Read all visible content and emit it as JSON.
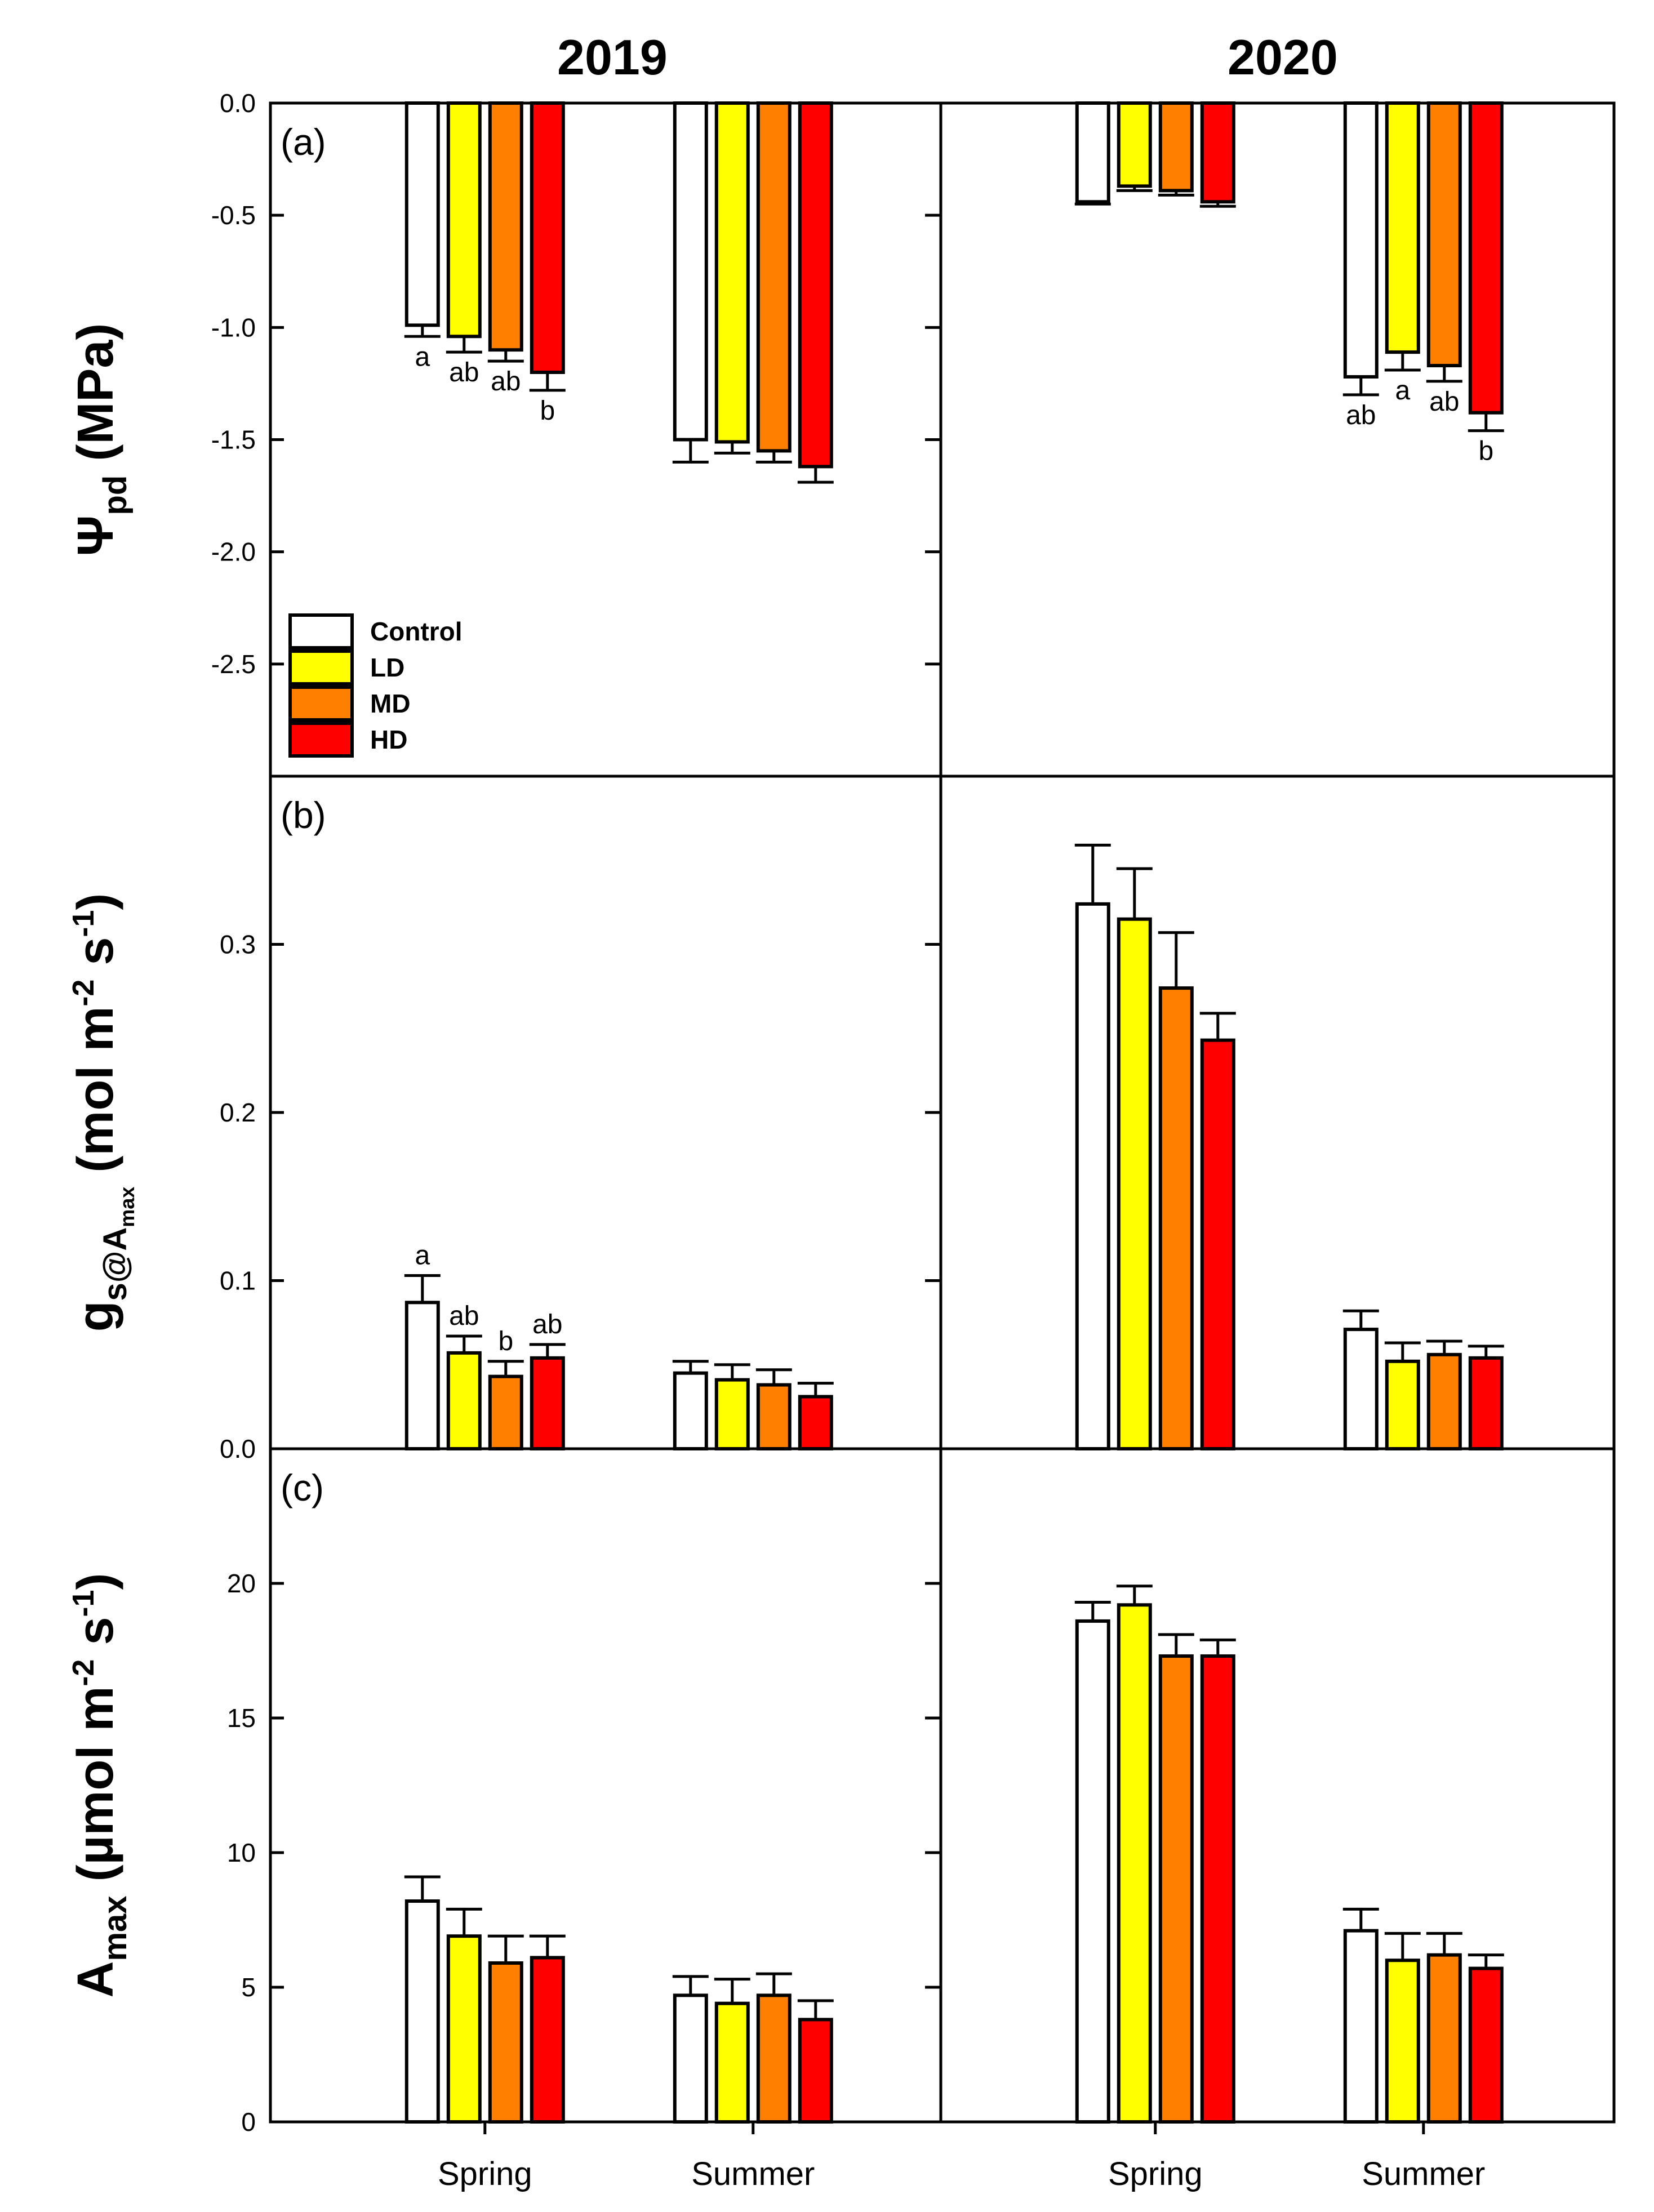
{
  "chart_data": {
    "type": "bar",
    "years": [
      "2019",
      "2020"
    ],
    "seasons": [
      "Spring",
      "Summer"
    ],
    "treatments": [
      "Control",
      "LD",
      "MD",
      "HD"
    ],
    "colors": {
      "Control": "#ffffff",
      "LD": "#ffff00",
      "MD": "#ff8000",
      "HD": "#ff0000"
    },
    "panels": [
      {
        "id": "a",
        "label": "(a)",
        "ylabel_main": "Ψ",
        "ylabel_sub": "pd",
        "ylabel_rest": " (MPa)",
        "ylim": [
          -3.0,
          0.0
        ],
        "yticks": [
          0.0,
          -0.5,
          -1.0,
          -1.5,
          -2.0,
          -2.5
        ],
        "ytick_labels": [
          "0.0",
          "-0.5",
          "-1.0",
          "-1.5",
          "-2.0",
          "-2.5"
        ],
        "groups": [
          {
            "year": "2019",
            "season": "Spring",
            "values": [
              -0.99,
              -1.04,
              -1.1,
              -1.2
            ],
            "errors": [
              0.05,
              0.07,
              0.05,
              0.08
            ],
            "letters": [
              "a",
              "ab",
              "ab",
              "b"
            ]
          },
          {
            "year": "2019",
            "season": "Summer",
            "values": [
              -1.5,
              -1.51,
              -1.55,
              -1.62
            ],
            "errors": [
              0.1,
              0.05,
              0.05,
              0.07
            ],
            "letters": [
              "",
              "",
              "",
              ""
            ]
          },
          {
            "year": "2020",
            "season": "Spring",
            "values": [
              -0.44,
              -0.37,
              -0.39,
              -0.44
            ],
            "errors": [
              0.01,
              0.02,
              0.02,
              0.02
            ],
            "letters": [
              "",
              "",
              "",
              ""
            ]
          },
          {
            "year": "2020",
            "season": "Summer",
            "values": [
              -1.22,
              -1.11,
              -1.17,
              -1.38
            ],
            "errors": [
              0.08,
              0.08,
              0.07,
              0.08
            ],
            "letters": [
              "ab",
              "a",
              "ab",
              "b"
            ]
          }
        ]
      },
      {
        "id": "b",
        "label": "(b)",
        "ylabel_main": "g",
        "ylabel_sub": "s@A",
        "ylabel_sub2": "max",
        "ylabel_rest": "  (mol m",
        "ylabel_sup1": "-2",
        "ylabel_mid": " s",
        "ylabel_sup2": "-1",
        "ylabel_end": ")",
        "ylim": [
          0.0,
          0.4
        ],
        "yticks": [
          0.0,
          0.1,
          0.2,
          0.3
        ],
        "ytick_labels": [
          "0.0",
          "0.1",
          "0.2",
          "0.3"
        ],
        "groups": [
          {
            "year": "2019",
            "season": "Spring",
            "values": [
              0.087,
              0.057,
              0.043,
              0.054
            ],
            "errors": [
              0.016,
              0.01,
              0.009,
              0.008
            ],
            "letters": [
              "a",
              "ab",
              "b",
              "ab"
            ]
          },
          {
            "year": "2019",
            "season": "Summer",
            "values": [
              0.045,
              0.041,
              0.038,
              0.031
            ],
            "errors": [
              0.007,
              0.009,
              0.009,
              0.008
            ],
            "letters": [
              "",
              "",
              "",
              ""
            ]
          },
          {
            "year": "2020",
            "season": "Spring",
            "values": [
              0.324,
              0.315,
              0.274,
              0.243
            ],
            "errors": [
              0.035,
              0.03,
              0.033,
              0.016
            ],
            "letters": [
              "",
              "",
              "",
              ""
            ]
          },
          {
            "year": "2020",
            "season": "Summer",
            "values": [
              0.071,
              0.052,
              0.056,
              0.054
            ],
            "errors": [
              0.011,
              0.011,
              0.008,
              0.007
            ],
            "letters": [
              "",
              "",
              "",
              ""
            ]
          }
        ]
      },
      {
        "id": "c",
        "label": "(c)",
        "ylabel_main": "A",
        "ylabel_sub": "max",
        "ylabel_rest": " (µmol m",
        "ylabel_sup1": "-2",
        "ylabel_mid": " s",
        "ylabel_sup2": "-1",
        "ylabel_end": ")",
        "ylim": [
          0,
          25
        ],
        "yticks": [
          0,
          5,
          10,
          15,
          20
        ],
        "ytick_labels": [
          "0",
          "5",
          "10",
          "15",
          "20"
        ],
        "groups": [
          {
            "year": "2019",
            "season": "Spring",
            "values": [
              8.2,
              6.9,
              5.9,
              6.1
            ],
            "errors": [
              0.9,
              1.0,
              1.0,
              0.8
            ],
            "letters": [
              "",
              "",
              "",
              ""
            ]
          },
          {
            "year": "2019",
            "season": "Summer",
            "values": [
              4.7,
              4.4,
              4.7,
              3.8
            ],
            "errors": [
              0.7,
              0.9,
              0.8,
              0.7
            ],
            "letters": [
              "",
              "",
              "",
              ""
            ]
          },
          {
            "year": "2020",
            "season": "Spring",
            "values": [
              18.6,
              19.2,
              17.3,
              17.3
            ],
            "errors": [
              0.7,
              0.7,
              0.8,
              0.6
            ],
            "letters": [
              "",
              "",
              "",
              ""
            ]
          },
          {
            "year": "2020",
            "season": "Summer",
            "values": [
              7.1,
              6.0,
              6.2,
              5.7
            ],
            "errors": [
              0.8,
              1.0,
              0.8,
              0.5
            ],
            "letters": [
              "",
              "",
              "",
              ""
            ]
          }
        ]
      }
    ],
    "legend": {
      "entries": [
        "Control",
        "LD",
        "MD",
        "HD"
      ],
      "position": "lower-left of panel (a), 2019"
    }
  }
}
